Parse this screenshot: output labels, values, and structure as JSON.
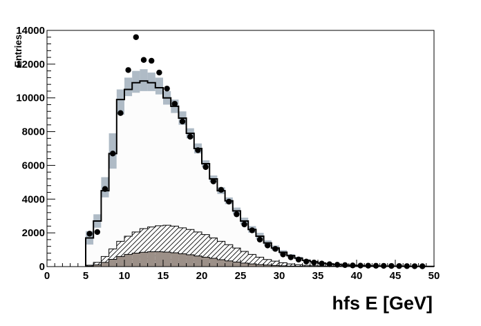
{
  "chart_data": {
    "type": "bar",
    "xlabel": "hfs E [GeV]",
    "ylabel": "Entries",
    "xlim": [
      0,
      50
    ],
    "ylim": [
      0,
      14000
    ],
    "bin_width": 1,
    "x_ticks": [
      0,
      5,
      10,
      15,
      20,
      25,
      30,
      35,
      40,
      45,
      50
    ],
    "y_ticks": [
      0,
      2000,
      4000,
      6000,
      8000,
      10000,
      12000,
      14000
    ],
    "grid": false,
    "colors": {
      "total_mc": "#000000",
      "band": "#afbbc6",
      "hatched": "#000000",
      "solid_fill": "#9c9088",
      "data_points": "#000000"
    },
    "series": [
      {
        "role": "total_mc",
        "style": "step line with light fill and grey uncertainty band",
        "x": [
          5,
          6,
          7,
          8,
          9,
          10,
          11,
          12,
          13,
          14,
          15,
          16,
          17,
          18,
          19,
          20,
          21,
          22,
          23,
          24,
          25,
          26,
          27,
          28,
          29,
          30,
          31,
          32,
          33,
          34,
          35,
          36,
          37,
          38,
          39,
          40,
          41,
          42,
          43,
          44,
          45,
          46,
          47,
          48,
          49
        ],
        "values": [
          1700,
          2700,
          4500,
          6700,
          9900,
          10500,
          10900,
          11000,
          10900,
          10600,
          10000,
          9500,
          8800,
          7900,
          7000,
          6100,
          5200,
          4500,
          3900,
          3300,
          2700,
          2200,
          1800,
          1400,
          1100,
          850,
          650,
          500,
          370,
          280,
          210,
          160,
          120,
          90,
          70,
          55,
          45,
          35,
          28,
          22,
          18,
          15,
          12,
          10,
          8
        ],
        "band_low": [
          1300,
          2300,
          4100,
          5800,
          9000,
          10100,
          10300,
          10400,
          10400,
          10200,
          9600,
          9100,
          8400,
          7600,
          6700,
          5900,
          5000,
          4300,
          3700,
          3100,
          2500,
          2000,
          1600,
          1250,
          950,
          730,
          560,
          420,
          310,
          230,
          170,
          130,
          100,
          75,
          55,
          45,
          35,
          28,
          22,
          18,
          14,
          12,
          9,
          7,
          6
        ],
        "band_high": [
          2100,
          3100,
          5300,
          7900,
          10500,
          11200,
          11600,
          11700,
          11500,
          11200,
          10400,
          9900,
          9200,
          8200,
          7300,
          6300,
          5400,
          4700,
          4100,
          3500,
          2900,
          2400,
          2000,
          1550,
          1250,
          970,
          740,
          580,
          430,
          330,
          250,
          190,
          140,
          105,
          85,
          65,
          55,
          42,
          34,
          27,
          22,
          18,
          15,
          12,
          10
        ]
      },
      {
        "role": "hatched_component",
        "style": "step outline with diagonal hatching",
        "x": [
          5,
          6,
          7,
          8,
          9,
          10,
          11,
          12,
          13,
          14,
          15,
          16,
          17,
          18,
          19,
          20,
          21,
          22,
          23,
          24,
          25,
          26,
          27,
          28,
          29,
          30,
          31,
          32,
          33,
          34,
          35,
          36,
          37,
          38,
          39,
          40,
          41,
          42,
          43,
          44,
          45,
          46,
          47,
          48,
          49
        ],
        "values": [
          80,
          250,
          600,
          1050,
          1500,
          1800,
          2050,
          2250,
          2350,
          2420,
          2450,
          2400,
          2300,
          2200,
          2050,
          1900,
          1700,
          1500,
          1300,
          1100,
          900,
          720,
          560,
          420,
          320,
          230,
          160,
          110,
          75,
          50,
          35,
          25,
          18,
          12,
          9,
          6,
          4,
          3,
          2,
          1,
          1,
          0,
          0,
          0,
          0
        ]
      },
      {
        "role": "solid_component",
        "style": "filled step histogram",
        "x": [
          5,
          6,
          7,
          8,
          9,
          10,
          11,
          12,
          13,
          14,
          15,
          16,
          17,
          18,
          19,
          20,
          21,
          22,
          23,
          24,
          25,
          26,
          27,
          28,
          29,
          30,
          31,
          32,
          33,
          34,
          35,
          36,
          37,
          38,
          39,
          40,
          41,
          42,
          43,
          44,
          45,
          46,
          47,
          48,
          49
        ],
        "values": [
          30,
          100,
          250,
          430,
          600,
          720,
          800,
          850,
          880,
          880,
          860,
          820,
          760,
          700,
          630,
          560,
          490,
          410,
          340,
          270,
          210,
          160,
          120,
          90,
          65,
          45,
          30,
          20,
          13,
          9,
          6,
          4,
          3,
          2,
          1,
          1,
          0,
          0,
          0,
          0,
          0,
          0,
          0,
          0,
          0
        ]
      },
      {
        "role": "data_points",
        "style": "black markers with error bars",
        "x": [
          5.5,
          6.5,
          7.5,
          8.5,
          9.5,
          10.5,
          11.5,
          12.5,
          13.5,
          14.5,
          15.5,
          16.5,
          17.5,
          18.5,
          19.5,
          20.5,
          21.5,
          22.5,
          23.5,
          24.5,
          25.5,
          26.5,
          27.5,
          28.5,
          29.5,
          30.5,
          31.5,
          32.5,
          33.5,
          34.5,
          35.5,
          36.5,
          37.5,
          38.5,
          39.5,
          40.5,
          41.5,
          42.5,
          43.5,
          44.5,
          45.5,
          46.5,
          47.5,
          48.5
        ],
        "values": [
          1950,
          2050,
          4600,
          6700,
          9100,
          11650,
          13600,
          12250,
          12200,
          11500,
          10550,
          9650,
          8600,
          7700,
          6900,
          5900,
          5050,
          4550,
          3850,
          3100,
          2500,
          2150,
          1600,
          1250,
          1050,
          720,
          550,
          420,
          300,
          240,
          180,
          140,
          110,
          90,
          70,
          60,
          55,
          50,
          45,
          40,
          35,
          30,
          25,
          20
        ],
        "errors": [
          60,
          60,
          90,
          110,
          130,
          150,
          160,
          150,
          150,
          145,
          140,
          135,
          125,
          120,
          115,
          105,
          95,
          90,
          85,
          75,
          70,
          65,
          55,
          50,
          45,
          40,
          35,
          30,
          25,
          22,
          18,
          16,
          14,
          12,
          11,
          10,
          10,
          9,
          9,
          8,
          8,
          7,
          7,
          6
        ]
      }
    ]
  }
}
